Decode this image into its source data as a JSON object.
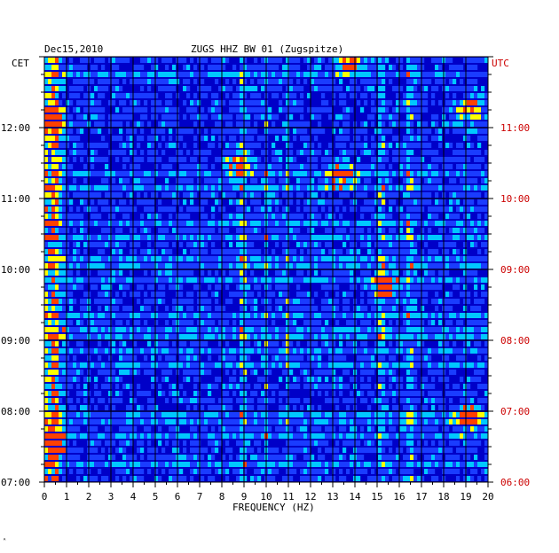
{
  "header": {
    "date": "Dec15,2010",
    "station": "ZUGS HHZ BW 01 (Zugspitze)",
    "left_tz": "CET",
    "right_tz": "UTC"
  },
  "footer_mark": "ᴬ",
  "colors": {
    "background": "#0000c8",
    "low": "#1a3cff",
    "mid": "#00c8ff",
    "high": "#ffff00",
    "peak": "#ff4000",
    "grid": "#000000",
    "utc_label": "#cc0000"
  },
  "chart_data": {
    "type": "heatmap",
    "title": "ZUGS HHZ BW 01 (Zugspitze)",
    "subtitle": "Dec15,2010",
    "xlabel": "FREQUENCY (HZ)",
    "ylabel": "",
    "xlim": [
      0,
      20
    ],
    "x_ticks": [
      "0",
      "1",
      "2",
      "3",
      "4",
      "5",
      "6",
      "7",
      "8",
      "9",
      "10",
      "11",
      "12",
      "13",
      "14",
      "15",
      "16",
      "17",
      "18",
      "19",
      "20"
    ],
    "y_left_ticks": [
      "07:00",
      "08:00",
      "09:00",
      "10:00",
      "11:00",
      "12:00"
    ],
    "y_right_ticks": [
      "06:00",
      "07:00",
      "08:00",
      "09:00",
      "10:00",
      "11:00"
    ],
    "y_left_timezone": "CET",
    "y_right_timezone": "UTC",
    "time_range_cet": [
      "07:00",
      "13:00"
    ],
    "rows": 60,
    "colormap": [
      "#0000c8",
      "#1a3cff",
      "#00c8ff",
      "#ffff00",
      "#ff4000"
    ],
    "persistent_bands_hz": [
      0.5,
      9.0,
      10.0,
      11.0,
      15.2,
      16.5
    ],
    "hotspots": [
      {
        "freq_hz": 0.4,
        "time_cet": "07:35",
        "intensity": 0.9
      },
      {
        "freq_hz": 0.4,
        "time_cet": "12:05",
        "intensity": 0.8
      },
      {
        "freq_hz": 19.2,
        "time_cet": "07:55",
        "intensity": 0.95
      },
      {
        "freq_hz": 19.2,
        "time_cet": "12:15",
        "intensity": 0.85
      },
      {
        "freq_hz": 13.4,
        "time_cet": "11:20",
        "intensity": 0.9
      },
      {
        "freq_hz": 15.4,
        "time_cet": "09:45",
        "intensity": 0.85
      },
      {
        "freq_hz": 8.7,
        "time_cet": "11:30",
        "intensity": 0.7
      },
      {
        "freq_hz": 13.8,
        "time_cet": "12:55",
        "intensity": 0.75
      }
    ]
  }
}
